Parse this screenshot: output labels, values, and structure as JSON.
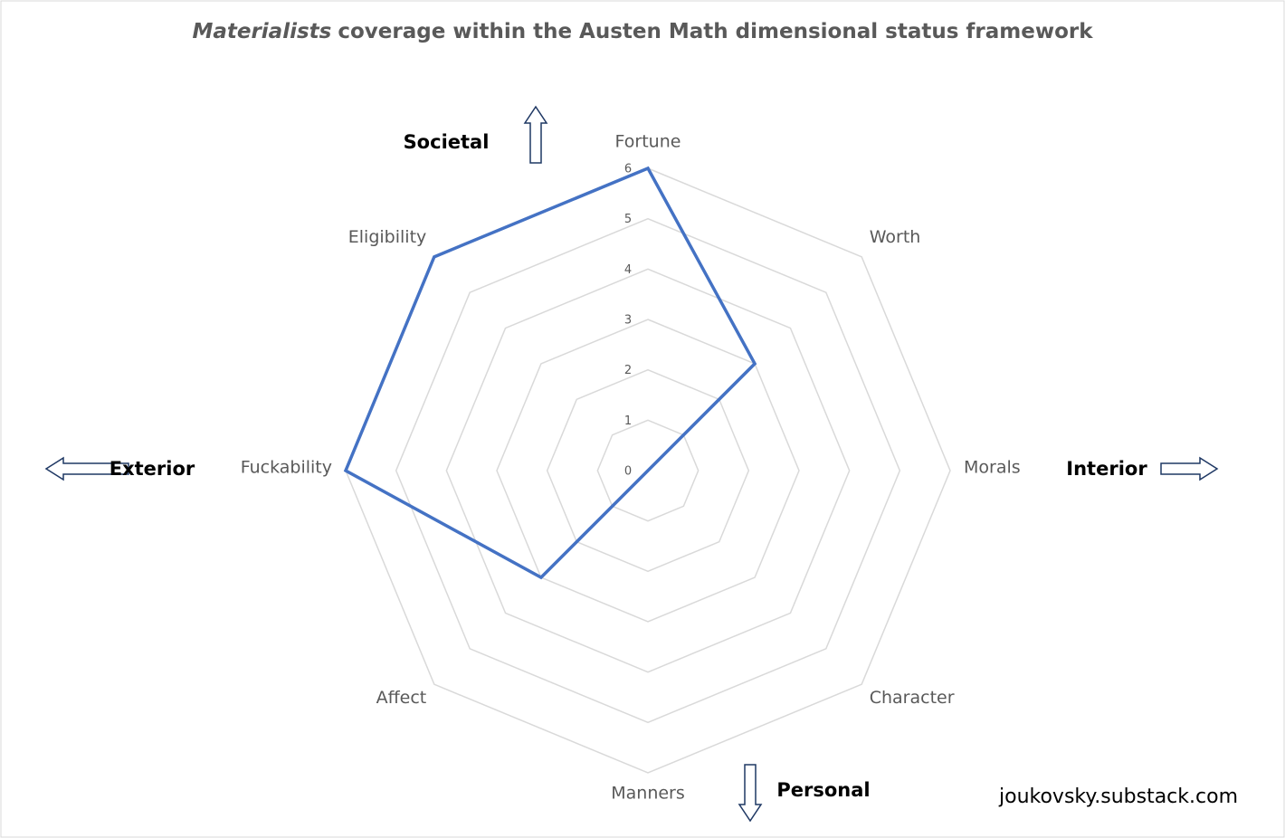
{
  "chart_data": {
    "type": "radar",
    "title": {
      "italic": "Materialists",
      "rest": "coverage within the Austen Math dimensional status framework"
    },
    "categories": [
      "Fortune",
      "Worth",
      "Morals",
      "Character",
      "Manners",
      "Affect",
      "Fuckability",
      "Eligibility"
    ],
    "series": [
      {
        "name": "Materialists",
        "color": "#4472c4",
        "values": [
          6,
          3,
          0,
          0,
          0,
          3,
          6,
          6
        ]
      }
    ],
    "rlim": [
      0,
      6
    ],
    "rticks": [
      0,
      1,
      2,
      3,
      4,
      5,
      6
    ],
    "grid": true,
    "annotations": [
      "Societal",
      "Interior",
      "Personal",
      "Exterior"
    ],
    "footer": "joukovsky.substack.com"
  }
}
